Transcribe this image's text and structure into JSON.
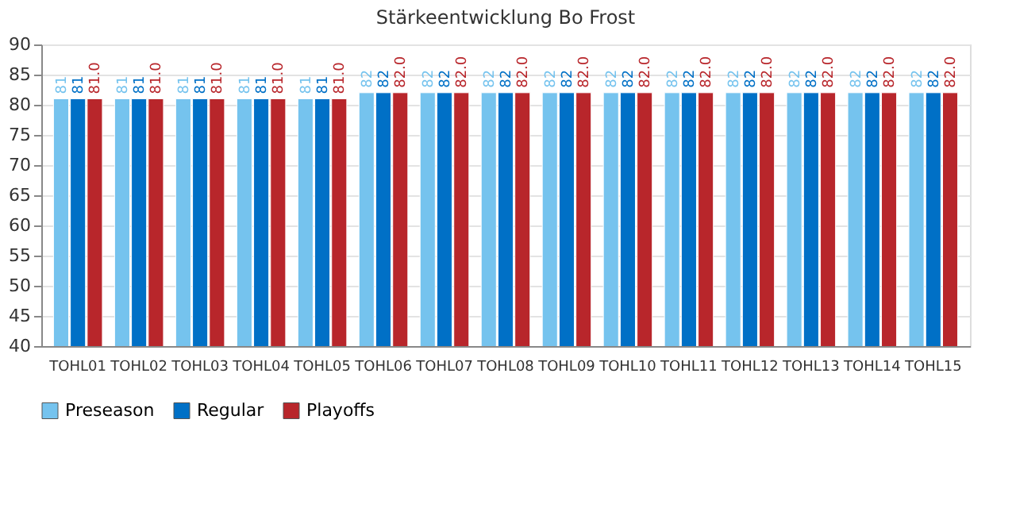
{
  "chart_data": {
    "type": "bar",
    "title": "Stärkeentwicklung Bo Frost",
    "categories": [
      "TOHL01",
      "TOHL02",
      "TOHL03",
      "TOHL04",
      "TOHL05",
      "TOHL06",
      "TOHL07",
      "TOHL08",
      "TOHL09",
      "TOHL10",
      "TOHL11",
      "TOHL12",
      "TOHL13",
      "TOHL14",
      "TOHL15"
    ],
    "series": [
      {
        "name": "Preseason",
        "color": "#75c3ee",
        "values": [
          81,
          81,
          81,
          81,
          81,
          82,
          82,
          82,
          82,
          82,
          82,
          82,
          82,
          82,
          82
        ],
        "value_labels": [
          "81",
          "81",
          "81",
          "81",
          "81",
          "82",
          "82",
          "82",
          "82",
          "82",
          "82",
          "82",
          "82",
          "82",
          "82"
        ]
      },
      {
        "name": "Regular",
        "color": "#0070c6",
        "values": [
          81,
          81,
          81,
          81,
          81,
          82,
          82,
          82,
          82,
          82,
          82,
          82,
          82,
          82,
          82
        ],
        "value_labels": [
          "81",
          "81",
          "81",
          "81",
          "81",
          "82",
          "82",
          "82",
          "82",
          "82",
          "82",
          "82",
          "82",
          "82",
          "82"
        ]
      },
      {
        "name": "Playoffs",
        "color": "#b8262b",
        "values": [
          81,
          81,
          81,
          81,
          81,
          82,
          82,
          82,
          82,
          82,
          82,
          82,
          82,
          82,
          82
        ],
        "value_labels": [
          "81.0",
          "81.0",
          "81.0",
          "81.0",
          "81.0",
          "82.0",
          "82.0",
          "82.0",
          "82.0",
          "82.0",
          "82.0",
          "82.0",
          "82.0",
          "82.0",
          "82.0"
        ]
      }
    ],
    "ylim": [
      40,
      90
    ],
    "yticks": [
      40,
      45,
      50,
      55,
      60,
      65,
      70,
      75,
      80,
      85,
      90
    ],
    "grid": "y",
    "legend": "bottom"
  }
}
